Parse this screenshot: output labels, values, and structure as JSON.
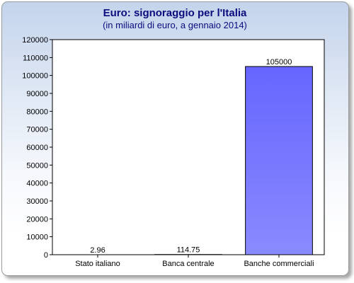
{
  "chart_data": {
    "type": "bar",
    "title": "Euro: signoraggio per l'Italia",
    "subtitle": "(in miliardi di euro, a gennaio 2014)",
    "xlabel": "",
    "ylabel": "",
    "categories": [
      "Stato italiano",
      "Banca centrale",
      "Banche commerciali"
    ],
    "values": [
      2.96,
      114.75,
      105000
    ],
    "data_labels": [
      "2.96",
      "114.75",
      "105000"
    ],
    "ylim": [
      0,
      120000
    ],
    "yticks": [
      0,
      10000,
      20000,
      30000,
      40000,
      50000,
      60000,
      70000,
      80000,
      90000,
      100000,
      110000,
      120000
    ],
    "grid": false,
    "legend": "none",
    "colors": {
      "bar_top": "#6666ff",
      "bar_bottom": "#8a8aff",
      "bar_stroke": "#000000",
      "title": "#0c0c7e",
      "plot_background": "#ffffff"
    }
  }
}
